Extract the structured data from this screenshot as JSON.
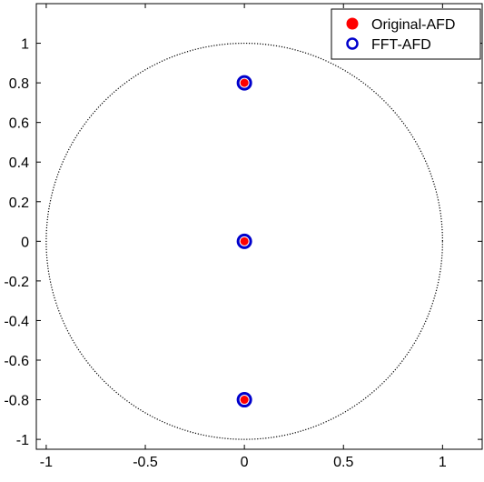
{
  "chart_data": {
    "type": "scatter",
    "title": "",
    "xlabel": "",
    "ylabel": "",
    "xlim": [
      -1.05,
      1.2
    ],
    "ylim": [
      -1.05,
      1.2
    ],
    "grid": false,
    "legend_position": "top-right",
    "x_ticks": [
      -1,
      -0.5,
      0,
      0.5,
      1
    ],
    "x_tick_labels": [
      "-1",
      "-0.5",
      "0",
      "0.5",
      "1"
    ],
    "y_ticks": [
      1,
      0.8,
      0.6,
      0.4,
      0.2,
      0,
      -0.2,
      -0.4,
      -0.6,
      -0.8,
      -1
    ],
    "y_tick_labels": [
      "1",
      "0.8",
      "0.6",
      "0.4",
      "0.2",
      "0",
      "-0.2",
      "-0.4",
      "-0.6",
      "-0.8",
      "-1"
    ],
    "unit_circle": {
      "center": [
        0,
        0
      ],
      "radius": 1,
      "style": "dotted",
      "color": "#000000"
    },
    "series": [
      {
        "name": "Original-AFD",
        "marker": "filled-circle",
        "color": "#ff0000",
        "points": [
          {
            "x": 0,
            "y": 0.8
          },
          {
            "x": 0,
            "y": 0
          },
          {
            "x": 0,
            "y": -0.8
          }
        ]
      },
      {
        "name": "FFT-AFD",
        "marker": "open-circle",
        "color": "#0000cc",
        "points": [
          {
            "x": 0,
            "y": 0.8
          },
          {
            "x": 0,
            "y": 0
          },
          {
            "x": 0,
            "y": -0.8
          }
        ]
      }
    ]
  }
}
